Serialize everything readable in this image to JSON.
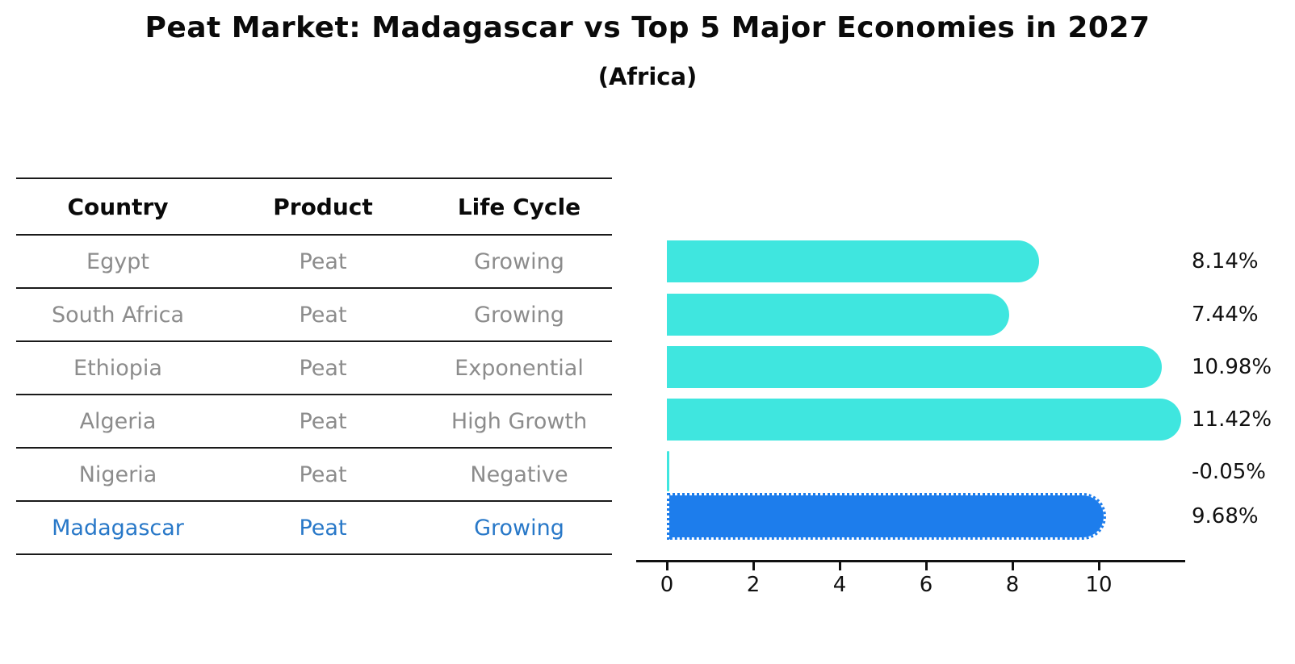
{
  "title": "Peat Market: Madagascar vs Top 5 Major Economies in 2027",
  "subtitle": "(Africa)",
  "table": {
    "headers": {
      "country": "Country",
      "product": "Product",
      "life_cycle": "Life Cycle"
    },
    "rows": [
      {
        "country": "Egypt",
        "product": "Peat",
        "life_cycle": "Growing",
        "highlighted": false
      },
      {
        "country": "South Africa",
        "product": "Peat",
        "life_cycle": "Growing",
        "highlighted": false
      },
      {
        "country": "Ethiopia",
        "product": "Peat",
        "life_cycle": "Exponential",
        "highlighted": false
      },
      {
        "country": "Algeria",
        "product": "Peat",
        "life_cycle": "High Growth",
        "highlighted": false
      },
      {
        "country": "Nigeria",
        "product": "Peat",
        "life_cycle": "Negative",
        "highlighted": false
      },
      {
        "country": "Madagascar",
        "product": "Peat",
        "life_cycle": "Growing",
        "highlighted": true
      }
    ]
  },
  "chart_data": {
    "type": "bar",
    "orientation": "horizontal",
    "title": "Peat Market: Madagascar vs Top 5 Major Economies in 2027",
    "subtitle": "(Africa)",
    "categories": [
      "Egypt",
      "South Africa",
      "Ethiopia",
      "Algeria",
      "Nigeria",
      "Madagascar"
    ],
    "values": [
      8.14,
      7.44,
      10.98,
      11.42,
      -0.05,
      9.68
    ],
    "value_labels": [
      "8.14%",
      "7.44%",
      "10.98%",
      "11.42%",
      "-0.05%",
      "9.68%"
    ],
    "highlight_index": 5,
    "x_ticks": [
      0,
      2,
      4,
      6,
      8,
      10
    ],
    "xlim": [
      0,
      12
    ],
    "grid": false,
    "legend": "none",
    "bar_color": "#3fe6df",
    "highlight_bar_color": "#1d7dec",
    "highlight_text_color": "#2878c8"
  }
}
